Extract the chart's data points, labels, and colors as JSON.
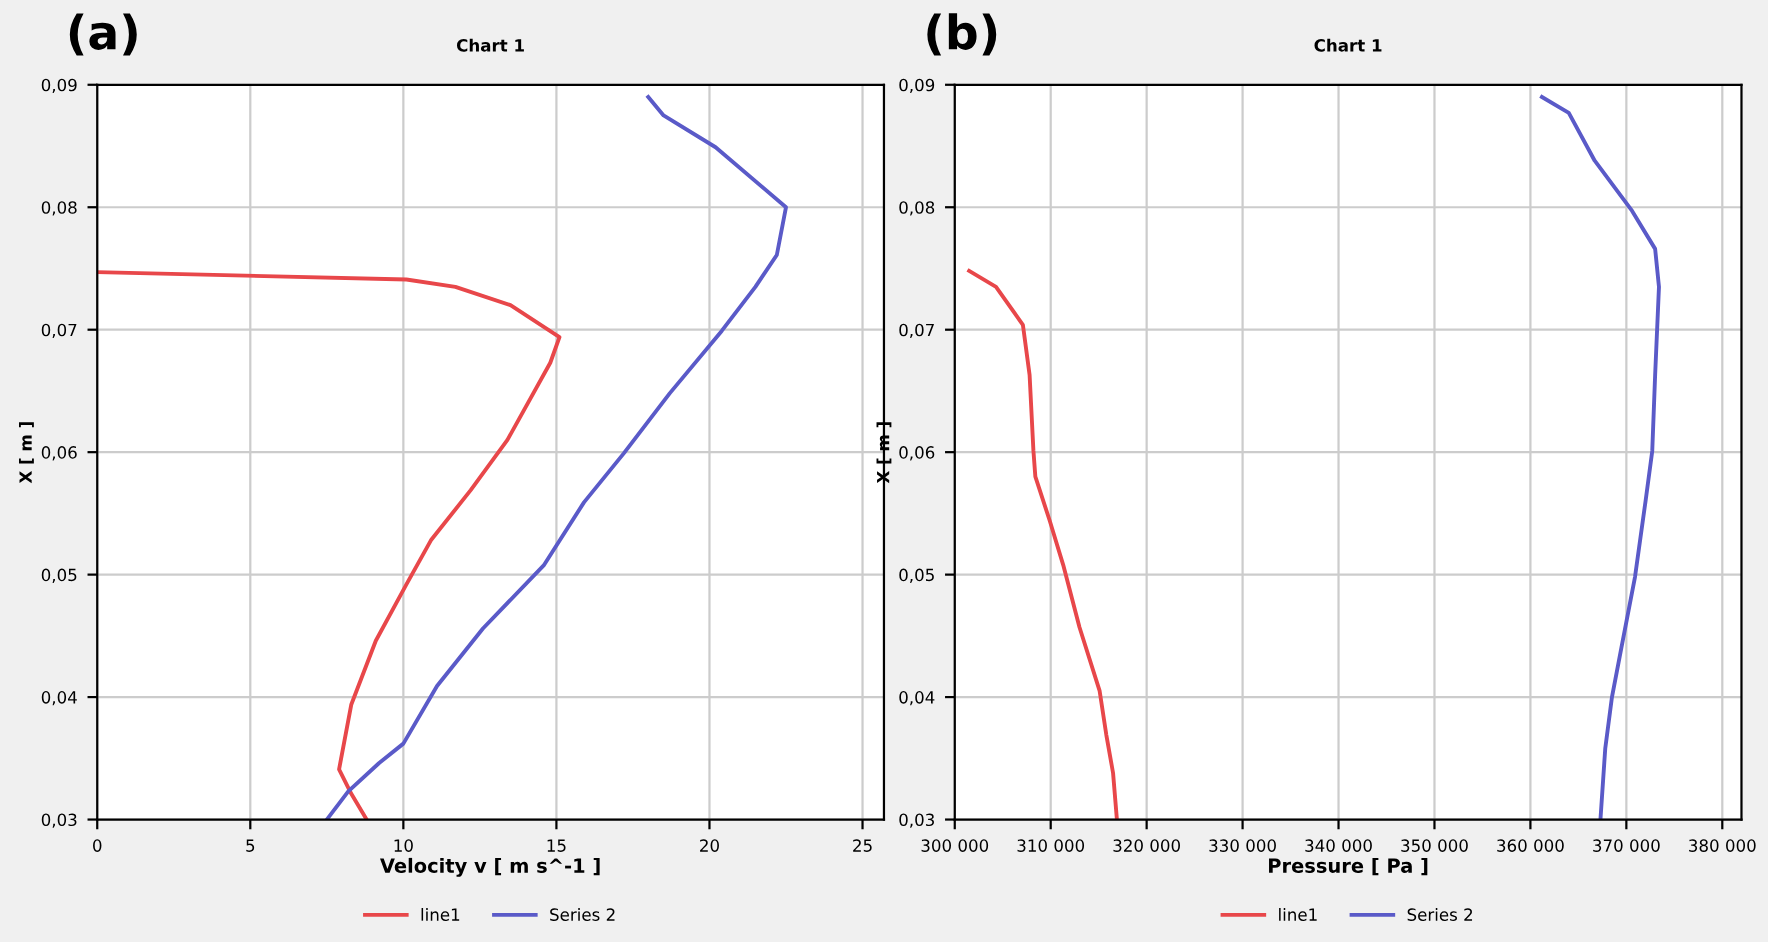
{
  "chart_data": [
    {
      "type": "line",
      "title": "Chart 1",
      "xlabel": "Velocity v [ m s^-1 ]",
      "ylabel": "X [ m ]",
      "annotations": [
        "(a)"
      ],
      "grid": true,
      "legend": "bottom",
      "line_style": "solid",
      "marker": "none",
      "xlim": [
        0,
        25.7
      ],
      "ylim": [
        0.03,
        0.09
      ],
      "xticks": [
        0,
        5,
        10,
        15,
        20,
        25
      ],
      "yticks": [
        {
          "value": 0.03,
          "label": "0,03"
        },
        {
          "value": 0.04,
          "label": "0,04"
        },
        {
          "value": 0.05,
          "label": "0,05"
        },
        {
          "value": 0.06,
          "label": "0,06"
        },
        {
          "value": 0.07,
          "label": "0,07"
        },
        {
          "value": 0.08,
          "label": "0,08"
        },
        {
          "value": 0.09,
          "label": "0,09"
        }
      ],
      "series": [
        {
          "name": "line1",
          "color": "#e8474a",
          "x": [
            0,
            10.1,
            11.7,
            13.5,
            15.1,
            14.8,
            13.4,
            12.2,
            10.9,
            10.1,
            9.1,
            8.3,
            7.9,
            8.3,
            8.8
          ],
          "values": [
            0.0747,
            0.0741,
            0.0735,
            0.072,
            0.0694,
            0.0673,
            0.061,
            0.0569,
            0.0528,
            0.0492,
            0.0446,
            0.0394,
            0.0341,
            0.0321,
            0.03
          ]
        },
        {
          "name": "Series 2",
          "color": "#5a5ac8",
          "x": [
            18.0,
            18.5,
            20.2,
            22.5,
            22.2,
            21.5,
            20.4,
            18.7,
            17.2,
            15.9,
            14.6,
            12.6,
            11.1,
            10.0,
            9.2,
            8.2,
            7.5
          ],
          "values": [
            0.089,
            0.0875,
            0.0849,
            0.08,
            0.0761,
            0.0735,
            0.0699,
            0.0648,
            0.0599,
            0.0559,
            0.0508,
            0.0456,
            0.0409,
            0.0362,
            0.0346,
            0.0323,
            0.03
          ]
        }
      ]
    },
    {
      "type": "line",
      "title": "Chart 1",
      "xlabel": "Pressure [ Pa ]",
      "ylabel": "X [ m ]",
      "annotations": [
        "(b)"
      ],
      "grid": true,
      "legend": "bottom",
      "line_style": "solid",
      "marker": "none",
      "xlim": [
        300000,
        382000
      ],
      "ylim": [
        0.03,
        0.09
      ],
      "xticks": [
        {
          "value": 300000,
          "label": "300 000"
        },
        {
          "value": 310000,
          "label": "310 000"
        },
        {
          "value": 320000,
          "label": "320 000"
        },
        {
          "value": 330000,
          "label": "330 000"
        },
        {
          "value": 340000,
          "label": "340 000"
        },
        {
          "value": 350000,
          "label": "350 000"
        },
        {
          "value": 360000,
          "label": "360 000"
        },
        {
          "value": 370000,
          "label": "370 000"
        },
        {
          "value": 380000,
          "label": "380 000"
        }
      ],
      "yticks": [
        {
          "value": 0.03,
          "label": "0,03"
        },
        {
          "value": 0.04,
          "label": "0,04"
        },
        {
          "value": 0.05,
          "label": "0,05"
        },
        {
          "value": 0.06,
          "label": "0,06"
        },
        {
          "value": 0.07,
          "label": "0,07"
        },
        {
          "value": 0.08,
          "label": "0,08"
        },
        {
          "value": 0.09,
          "label": "0,09"
        }
      ],
      "series": [
        {
          "name": "line1",
          "color": "#e8474a",
          "x": [
            301500,
            304300,
            307100,
            307800,
            308200,
            308400,
            309900,
            311300,
            313000,
            315100,
            315800,
            316500,
            316900
          ],
          "values": [
            0.0748,
            0.0735,
            0.0704,
            0.0663,
            0.0601,
            0.058,
            0.0544,
            0.0508,
            0.0457,
            0.0405,
            0.0369,
            0.0338,
            0.03
          ]
        },
        {
          "name": "Series 2",
          "color": "#5a5ac8",
          "x": [
            361200,
            364000,
            366700,
            370600,
            373000,
            373400,
            373000,
            372700,
            372000,
            370900,
            369500,
            368500,
            367800,
            367300
          ],
          "values": [
            0.089,
            0.0877,
            0.0838,
            0.0797,
            0.0766,
            0.0735,
            0.0663,
            0.0601,
            0.056,
            0.0498,
            0.0441,
            0.04,
            0.0358,
            0.03
          ]
        }
      ]
    }
  ]
}
